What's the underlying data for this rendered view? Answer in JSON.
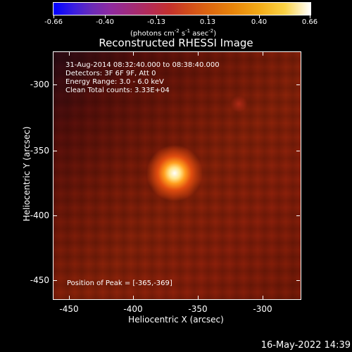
{
  "colorbar": {
    "ticks": [
      "-0.66",
      "-0.40",
      "-0.13",
      "0.13",
      "0.40",
      "0.66"
    ],
    "units_text": "(photons cm",
    "units_exp1": "-2",
    "units_mid": " s",
    "units_exp2": "-1",
    "units_mid2": " asec",
    "units_exp3": "-2",
    "units_end": ")"
  },
  "title": "Reconstructed RHESSI Image",
  "info": {
    "line1": "31-Aug-2014 08:32:40.000 to 08:38:40.000",
    "line2": "Detectors: 3F 6F 9F, Att 0",
    "line3": "Energy Range: 3.0 - 6.0 keV",
    "line4": "Clean     Total counts: 3.33E+04",
    "peak": "Position of Peak = [-365,-369]"
  },
  "axes": {
    "x_label": "Heliocentric X (arcsec)",
    "y_label": "Heliocentric Y (arcsec)",
    "x_ticks": [
      "-450",
      "-400",
      "-350",
      "-300"
    ],
    "y_ticks": [
      "-300",
      "-350",
      "-400",
      "-450"
    ]
  },
  "timestamp": "16-May-2022 14:39"
}
